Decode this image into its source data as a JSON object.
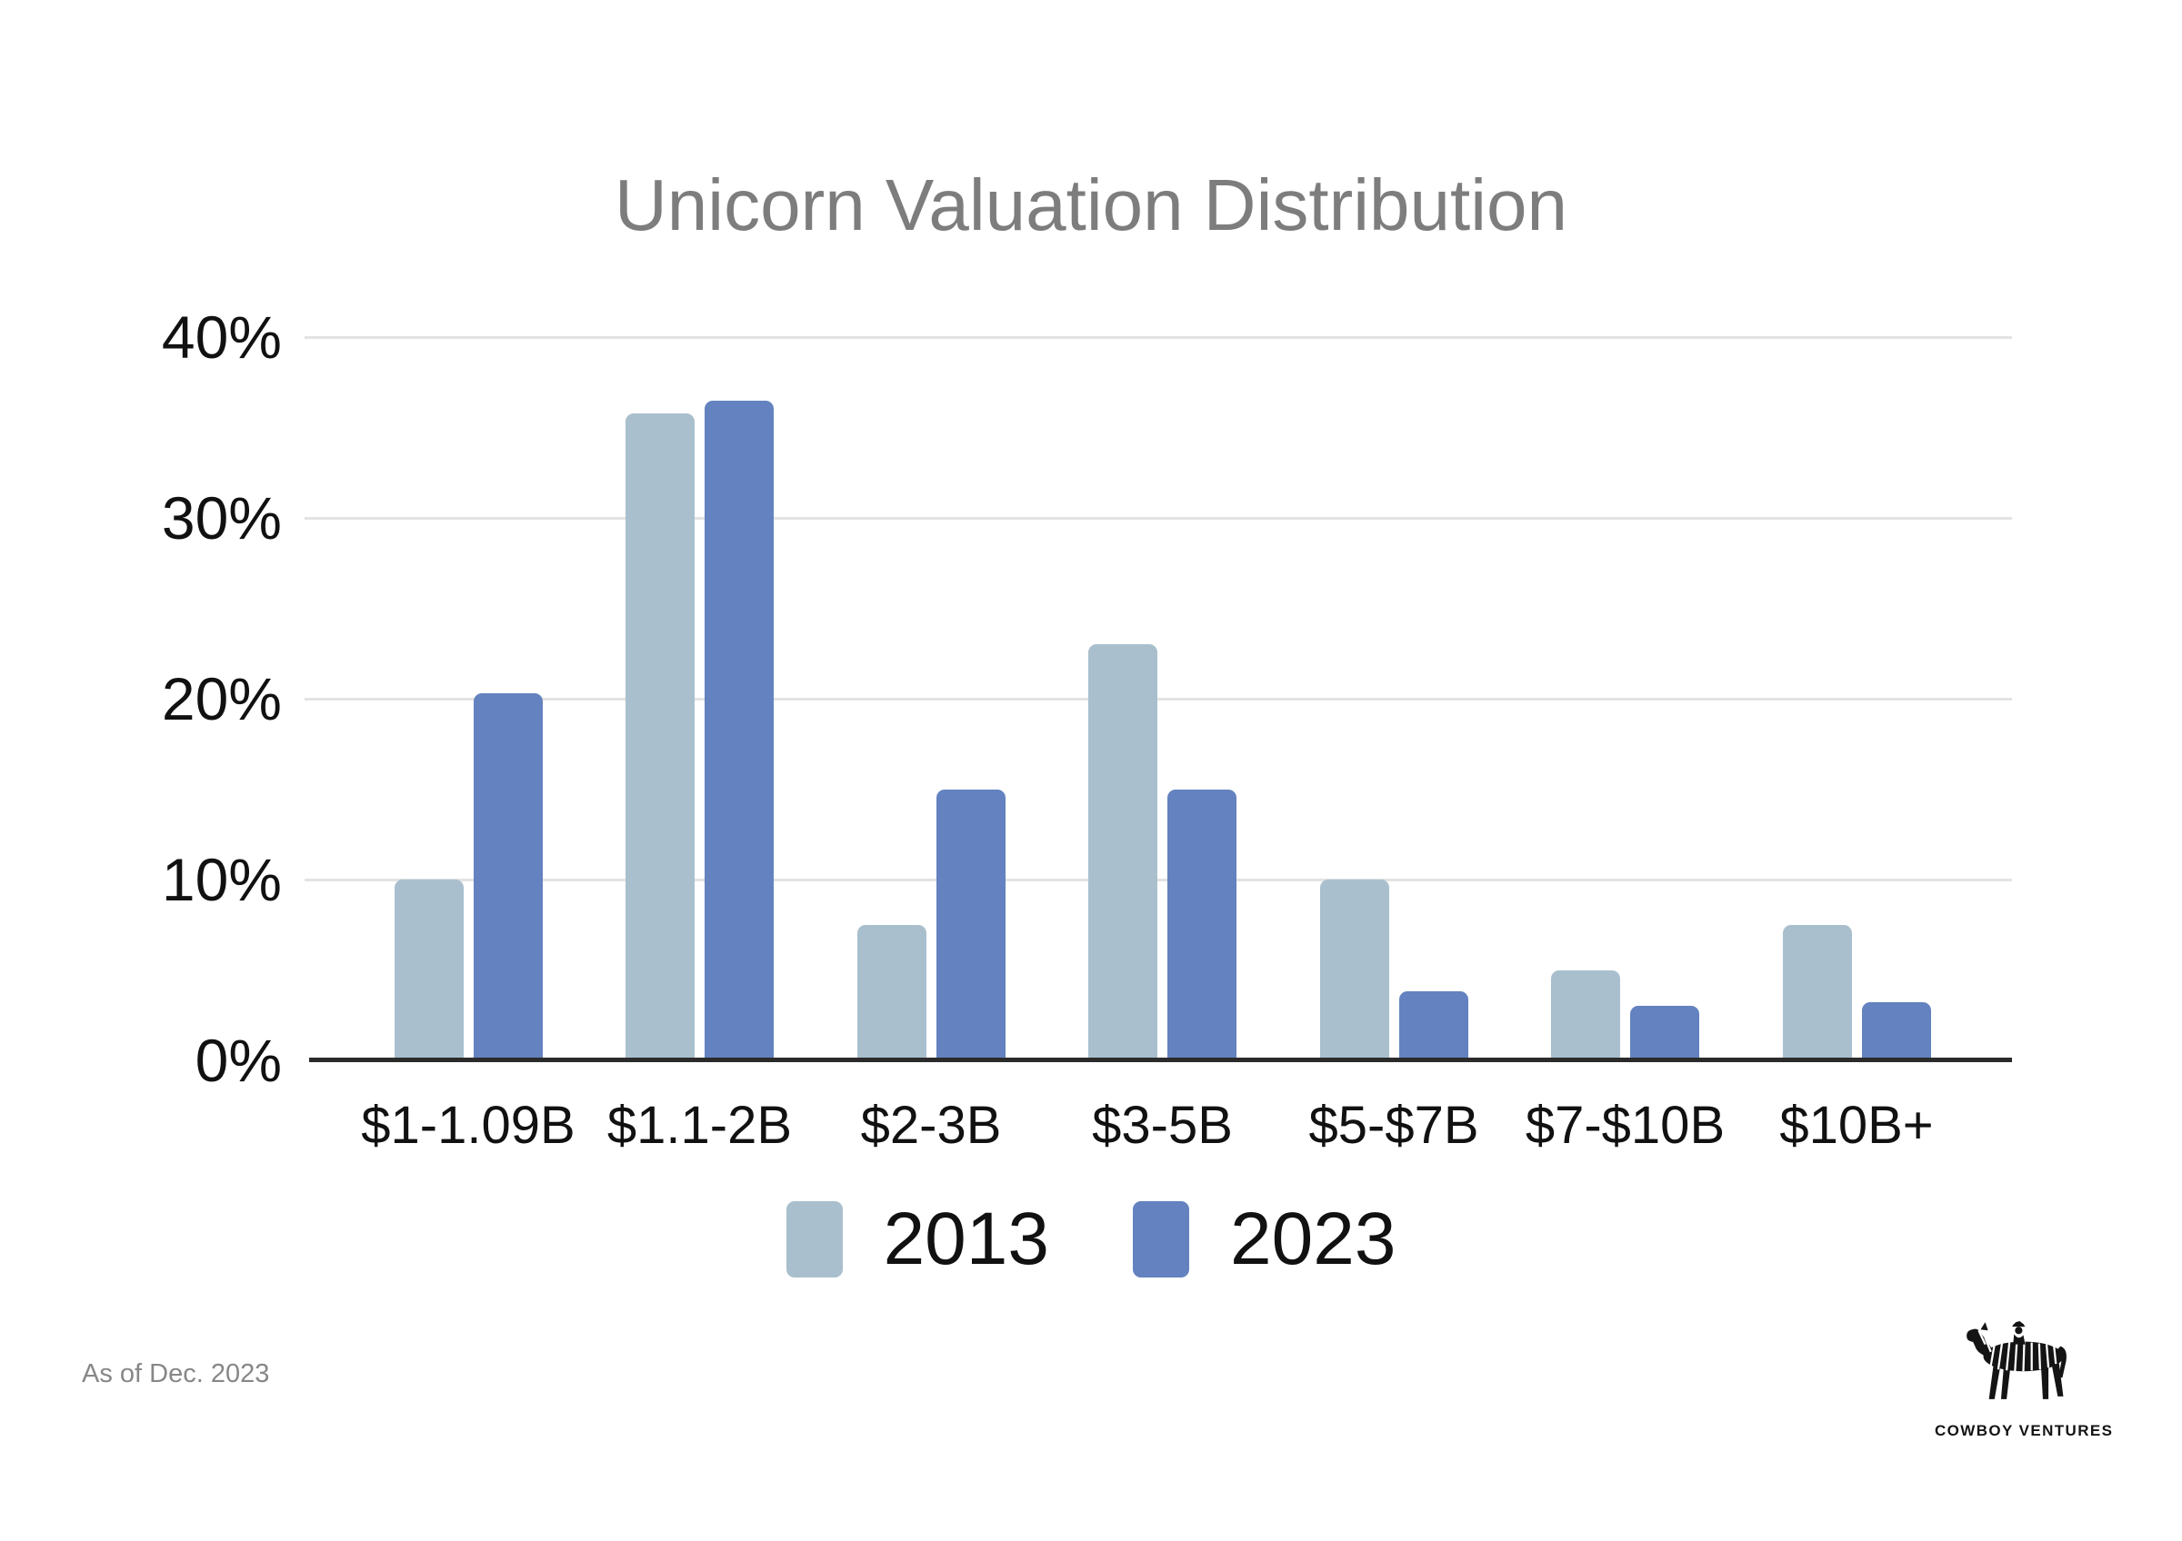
{
  "title": {
    "text": "Unicorn Valuation Distribution",
    "color": "#7d7d7d"
  },
  "chart_data": {
    "type": "bar",
    "title": "Unicorn Valuation Distribution",
    "categories": [
      "$1-1.09B",
      "$1.1-2B",
      "$2-3B",
      "$3-5B",
      "$5-$7B",
      "$7-$10B",
      "$10B+"
    ],
    "series": [
      {
        "name": "2013",
        "color": "#a9bfcd",
        "values": [
          10,
          35.8,
          7.5,
          23,
          10,
          5,
          7.5
        ]
      },
      {
        "name": "2023",
        "color": "#6382bf",
        "values": [
          20.3,
          36.5,
          15,
          15,
          3.8,
          3,
          3.2
        ]
      }
    ],
    "xlabel": "",
    "ylabel": "",
    "ylim": [
      0,
      40
    ],
    "yticks": [
      {
        "value": 0,
        "label": "0%"
      },
      {
        "value": 10,
        "label": "10%"
      },
      {
        "value": 20,
        "label": "20%"
      },
      {
        "value": 30,
        "label": "30%"
      },
      {
        "value": 40,
        "label": "40%"
      }
    ],
    "grid": "horizontal",
    "legend_position": "bottom"
  },
  "colors": {
    "gridline": "#e3e3e3",
    "axis_line": "#2b2b2b",
    "tick_text": "#111111"
  },
  "footer": {
    "note": "As of Dec. 2023"
  },
  "logo": {
    "wordmark": "COWBOY VENTURES"
  }
}
